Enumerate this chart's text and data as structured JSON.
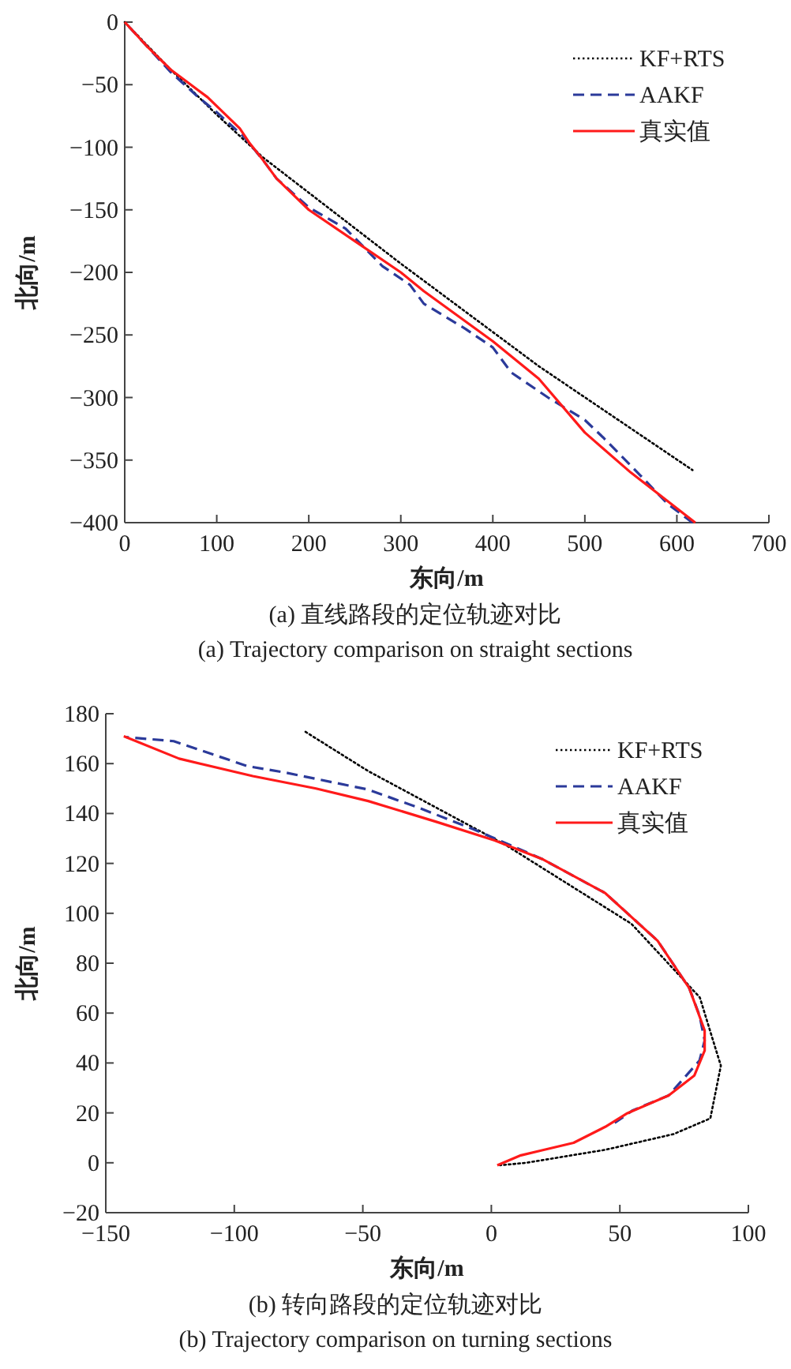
{
  "chart_data": [
    {
      "type": "line",
      "title": "(a) 直线路段的定位轨迹对比",
      "subtitle": "(a) Trajectory comparison on straight sections",
      "xlabel": "东向/m",
      "ylabel": "北向/m",
      "xlim": [
        0,
        700
      ],
      "ylim": [
        -400,
        0
      ],
      "xticks": [
        0,
        100,
        200,
        300,
        400,
        500,
        600,
        700
      ],
      "yticks": [
        {
          "value": -400,
          "label": "−400"
        },
        {
          "value": -350,
          "label": "−350"
        },
        {
          "value": -300,
          "label": "−300"
        },
        {
          "value": -250,
          "label": "−250"
        },
        {
          "value": -200,
          "label": "−200"
        },
        {
          "value": -150,
          "label": "−150"
        },
        {
          "value": -100,
          "label": "−100"
        },
        {
          "value": -50,
          "label": "−50"
        },
        0
      ],
      "legend": "top right",
      "grid": false,
      "series": [
        {
          "name": "KF+RTS",
          "color": "#000000",
          "line_style": "dotted",
          "x": [
            0,
            50,
            100,
            150,
            300,
            450,
            617
          ],
          "values": [
            0,
            -38,
            -74,
            -108,
            -193,
            -275,
            -358
          ]
        },
        {
          "name": "AAKF",
          "color": "#2b3a9a",
          "line_style": "dashed",
          "x": [
            0,
            50,
            80,
            100,
            130,
            150,
            165,
            200,
            240,
            280,
            310,
            325,
            370,
            400,
            420,
            460,
            500,
            520,
            560,
            590,
            617
          ],
          "values": [
            0,
            -40,
            -60,
            -72,
            -92,
            -110,
            -125,
            -148,
            -165,
            -195,
            -210,
            -225,
            -245,
            -260,
            -280,
            -300,
            -318,
            -332,
            -362,
            -385,
            -400
          ]
        },
        {
          "name": "真实值",
          "color": "#ff1a1a",
          "line_style": "solid",
          "x": [
            0,
            25,
            50,
            90,
            125,
            135,
            150,
            165,
            200,
            250,
            300,
            325,
            400,
            450,
            500,
            550,
            620
          ],
          "values": [
            0,
            -20,
            -38,
            -60,
            -85,
            -96,
            -110,
            -125,
            -150,
            -175,
            -200,
            -215,
            -255,
            -285,
            -328,
            -360,
            -400
          ]
        }
      ]
    },
    {
      "type": "line",
      "title": "(b) 转向路段的定位轨迹对比",
      "subtitle": "(b) Trajectory comparison on turning sections",
      "xlabel": "东向/m",
      "ylabel": "北向/m",
      "xlim": [
        -150,
        100
      ],
      "ylim": [
        -20,
        180
      ],
      "xticks": [
        {
          "value": -150,
          "label": "−150"
        },
        {
          "value": -100,
          "label": "−100"
        },
        {
          "value": -50,
          "label": "−50"
        },
        0,
        50,
        100
      ],
      "yticks": [
        {
          "value": -20,
          "label": "−20"
        },
        0,
        20,
        40,
        60,
        80,
        100,
        120,
        140,
        160,
        180
      ],
      "legend": "top right",
      "grid": false,
      "series": [
        {
          "name": "KF+RTS",
          "color": "#000000",
          "line_style": "dotted",
          "x": [
            -72.4,
            -47.9,
            -17.2,
            5.4,
            54.5,
            81.1,
            89.3,
            85.2,
            70.9,
            44.3,
            13.6,
            3.4
          ],
          "values": [
            172.8,
            157,
            140,
            127.5,
            95.8,
            66.3,
            38.9,
            17.8,
            11.5,
            5.2,
            0,
            -1
          ]
        },
        {
          "name": "AAKF",
          "color": "#2b3a9a",
          "line_style": "dashed",
          "x": [
            -142,
            -123.6,
            -94.9,
            -80.6,
            -47.9,
            -27.5,
            -7,
            19.7,
            44.3,
            64.7,
            77,
            81,
            83,
            81,
            69,
            55,
            48
          ],
          "values": [
            170.6,
            169,
            159,
            156.5,
            149.6,
            142,
            133.7,
            121.8,
            108.1,
            89,
            70,
            59,
            49,
            41,
            27,
            21,
            16
          ]
        },
        {
          "name": "真实值",
          "color": "#ff1a1a",
          "line_style": "solid",
          "x": [
            -143,
            -121.5,
            -92.8,
            -68.2,
            -47.9,
            -21.2,
            1.3,
            19.7,
            44.3,
            64.7,
            77,
            83,
            83,
            79,
            69,
            52.6,
            44.3,
            32,
            19.7,
            11.5,
            2.3
          ],
          "values": [
            171,
            162,
            155,
            150,
            145,
            136.6,
            129.2,
            121.8,
            108.1,
            89,
            70,
            53,
            45,
            35,
            27,
            19.7,
            14.4,
            8,
            5,
            3,
            -1
          ]
        }
      ]
    }
  ]
}
